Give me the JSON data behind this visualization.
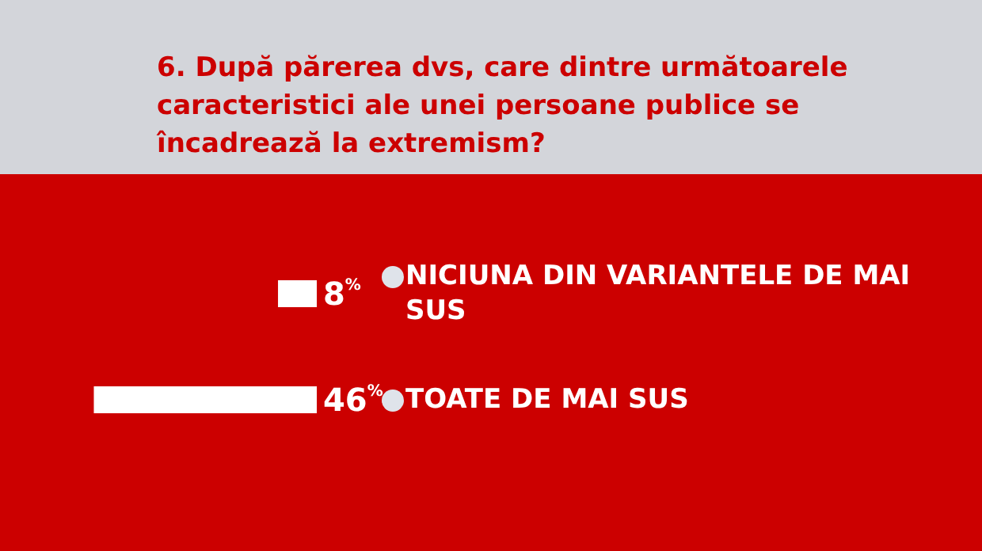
{
  "chart_data": {
    "type": "bar",
    "orientation": "horizontal",
    "title": "6. După părerea dvs, care dintre următoarele caracteristici ale unei persoane publice se încadrează la extremism?",
    "categories": [
      "NICIUNA DIN VARIANTELE DE MAI SUS",
      "TOATE DE MAI SUS"
    ],
    "values": [
      8,
      46
    ],
    "color": "#ffffff",
    "value_labels": [
      "8%",
      "46%"
    ]
  }
}
